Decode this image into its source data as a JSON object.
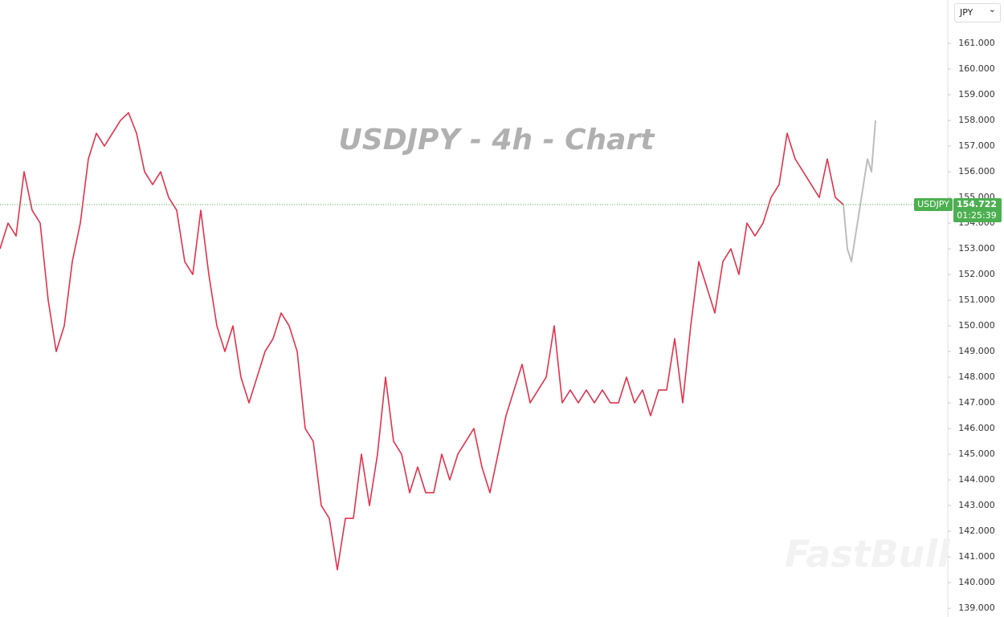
{
  "chart_data": {
    "type": "line",
    "title": "USDJPY - 4h - Chart",
    "currency": "JPY",
    "watermark": "FastBull",
    "ylim": [
      138.66,
      162.69
    ],
    "yticks": [
      {
        "value": 139,
        "label": "139.000"
      },
      {
        "value": 140,
        "label": "140.000"
      },
      {
        "value": 141,
        "label": "141.000"
      },
      {
        "value": 142,
        "label": "142.000"
      },
      {
        "value": 143,
        "label": "143.000"
      },
      {
        "value": 144,
        "label": "144.000"
      },
      {
        "value": 145,
        "label": "145.000"
      },
      {
        "value": 146,
        "label": "146.000"
      },
      {
        "value": 147,
        "label": "147.000"
      },
      {
        "value": 148,
        "label": "148.000"
      },
      {
        "value": 149,
        "label": "149.000"
      },
      {
        "value": 150,
        "label": "150.000"
      },
      {
        "value": 151,
        "label": "151.000"
      },
      {
        "value": 152,
        "label": "152.000"
      },
      {
        "value": 153,
        "label": "153.000"
      },
      {
        "value": 154,
        "label": "154.000"
      },
      {
        "value": 155,
        "label": "155.000"
      },
      {
        "value": 156,
        "label": "156.000"
      },
      {
        "value": 157,
        "label": "157.000"
      },
      {
        "value": 158,
        "label": "158.000"
      },
      {
        "value": 159,
        "label": "159.000"
      },
      {
        "value": 160,
        "label": "160.000"
      },
      {
        "value": 161,
        "label": "161.000"
      }
    ],
    "grid": false,
    "series": [
      {
        "name": "USDJPY",
        "color": "#e0334d",
        "values": [
          153,
          154,
          153.5,
          156,
          154.5,
          154,
          151,
          149,
          150,
          152.5,
          154,
          156.5,
          157.5,
          157,
          157.5,
          158,
          158.3,
          157.5,
          156,
          155.5,
          156,
          155,
          154.5,
          152.5,
          152,
          154.5,
          152,
          150,
          149,
          150,
          148,
          147,
          148,
          149,
          149.5,
          150.5,
          150,
          149,
          146,
          145.5,
          143,
          142.5,
          140.5,
          142.5,
          142.5,
          145,
          143,
          145,
          148,
          145.5,
          145,
          143.5,
          144.5,
          143.5,
          143.5,
          145,
          144,
          145,
          145.5,
          146,
          144.5,
          143.5,
          145,
          146.5,
          147.5,
          148.5,
          147,
          147.5,
          148,
          150,
          147,
          147.5,
          147,
          147.5,
          147,
          147.5,
          147,
          147,
          148,
          147,
          147.5,
          146.5,
          147.5,
          147.5,
          149.5,
          147,
          150,
          152.5,
          151.5,
          150.5,
          152.5,
          153,
          152,
          154,
          153.5,
          154,
          155,
          155.5,
          157.5,
          156.5,
          156,
          155.5,
          155,
          156.5,
          155,
          154.722
        ]
      },
      {
        "color": "#bdbdbd",
        "values": [
          154.722,
          153,
          152.5,
          153.5,
          154.5,
          155.5,
          156.5,
          156,
          158
        ]
      }
    ],
    "last_price": {
      "label": "USDJPY",
      "value": 154.722,
      "countdown": "01:25:39",
      "color": "#4caf50"
    }
  }
}
